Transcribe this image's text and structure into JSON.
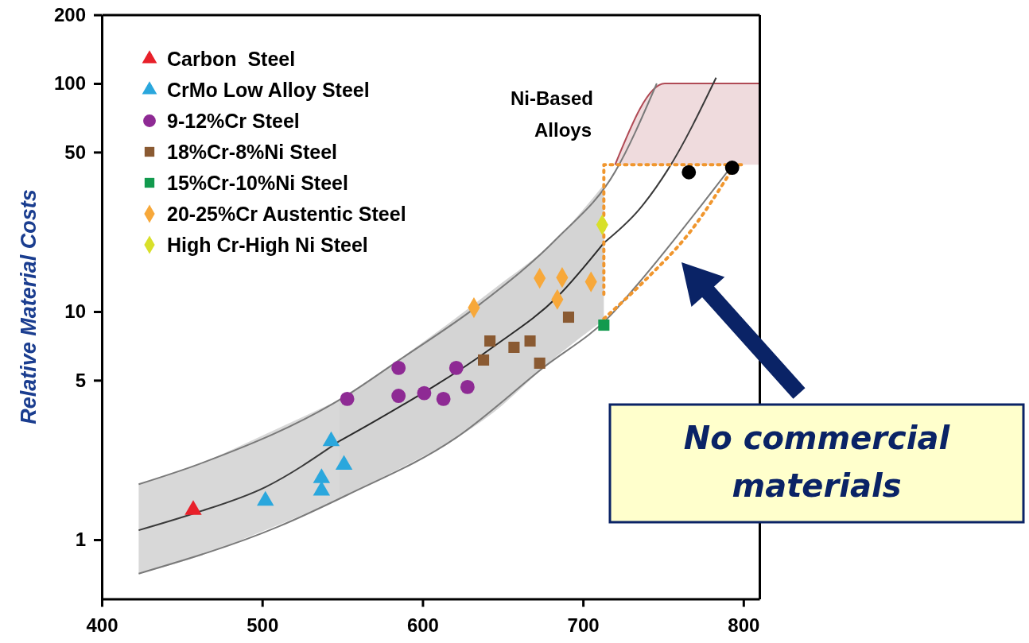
{
  "chart_data": {
    "type": "scatter",
    "ylabel": "Relative Material Costs",
    "log": "y",
    "xlim": [
      400,
      810
    ],
    "xticks": [
      400,
      500,
      600,
      700,
      800
    ],
    "ylim": [
      0.55,
      200
    ],
    "yticks": [
      1,
      5,
      10,
      50,
      100,
      200
    ],
    "grid": false,
    "legend": "top left",
    "annotations": [
      "Ni-Based Alloys",
      "No commercial materials"
    ],
    "series": [
      {
        "type": "line",
        "color": "#3a3a3a",
        "x": [
          423,
          457,
          502,
          548
        ],
        "values": [
          1.1,
          1.3,
          1.7,
          2.7
        ],
        "lower": [
          0.71,
          0.83,
          1.1,
          1.5
        ],
        "upper": [
          1.75,
          2.1,
          2.9,
          4.1
        ]
      },
      {
        "type": "line",
        "color": "#2a2a2a",
        "x": [
          548,
          570,
          644,
          684,
          713
        ],
        "values": [
          2.7,
          3.3,
          7.0,
          11.6,
          20
        ],
        "lower": [
          1.5,
          1.8,
          3.6,
          6.4,
          9.2
        ],
        "upper": [
          4.1,
          5.2,
          12.5,
          21,
          36
        ]
      },
      {
        "type": "line",
        "color": "#b04a55",
        "x": [
          720,
          751,
          810
        ],
        "values": [
          44,
          100,
          100
        ],
        "lower": [
          44,
          44,
          44
        ],
        "upper": [
          44,
          100,
          100
        ]
      },
      {
        "type": "line",
        "color": "#7a7a7a",
        "x": [
          423,
          461,
          553,
          585,
          636,
          684,
          720,
          746
        ],
        "values": [
          1.75,
          2.15,
          4.3,
          6.1,
          10.8,
          21,
          41,
          100
        ]
      },
      {
        "type": "line",
        "color": "#7a7a7a",
        "x": [
          423,
          510,
          553,
          621,
          675,
          717,
          733,
          790
        ],
        "values": [
          0.71,
          1.14,
          1.57,
          2.8,
          5.66,
          9.6,
          12.9,
          41
        ]
      },
      {
        "type": "line",
        "color": "#3a3a3a",
        "x": [
          713,
          735,
          753,
          783
        ],
        "values": [
          20,
          28,
          42,
          106
        ]
      },
      {
        "type": "line",
        "color": "#f0962e",
        "line_style": "dotted",
        "x": [
          713,
          713,
          800
        ],
        "values": [
          11.9,
          44,
          44
        ]
      },
      {
        "type": "line",
        "color": "#f0962e",
        "line_style": "dotted",
        "x": [
          713,
          740,
          766,
          793
        ],
        "values": [
          9.3,
          14,
          22,
          42
        ]
      },
      {
        "name": "Carbon  Steel",
        "color": "#e8202a",
        "marker": "triangle",
        "x": [
          457
        ],
        "values": [
          1.35
        ]
      },
      {
        "name": "CrMo Low Alloy Steel",
        "color": "#2aa7dd",
        "marker": "triangle",
        "x": [
          502,
          543,
          551,
          537,
          537
        ],
        "values": [
          1.48,
          2.7,
          2.13,
          1.86,
          1.64
        ]
      },
      {
        "name": "9-12%Cr Steel",
        "color": "#8e2a94",
        "marker": "circle",
        "x": [
          553,
          585,
          585,
          601,
          613,
          621,
          628
        ],
        "values": [
          4.14,
          5.66,
          4.27,
          4.39,
          4.14,
          5.66,
          4.67
        ]
      },
      {
        "name": "18%Cr-8%Ni Steel",
        "color": "#8a5a32",
        "marker": "square",
        "x": [
          642,
          638,
          657,
          667,
          673,
          691
        ],
        "values": [
          7.43,
          6.13,
          6.97,
          7.43,
          5.94,
          9.45
        ]
      },
      {
        "name": "15%Cr-10%Ni Steel",
        "color": "#129a4e",
        "marker": "square",
        "x": [
          713
        ],
        "values": [
          8.72
        ]
      },
      {
        "name": "20-25%Cr Austentic Steel",
        "color": "#f7a83a",
        "marker": "diamond",
        "x": [
          632,
          673,
          687,
          705,
          684
        ],
        "values": [
          10.4,
          14.0,
          14.1,
          13.5,
          11.3
        ]
      },
      {
        "name": "High Cr-High Ni Steel",
        "color": "#d8e02a",
        "marker": "diamond",
        "x": [
          712
        ],
        "values": [
          24.0
        ]
      },
      {
        "color": "#000000",
        "marker": "circle",
        "x": [
          766,
          793
        ],
        "values": [
          40.8,
          42.7
        ]
      }
    ]
  }
}
